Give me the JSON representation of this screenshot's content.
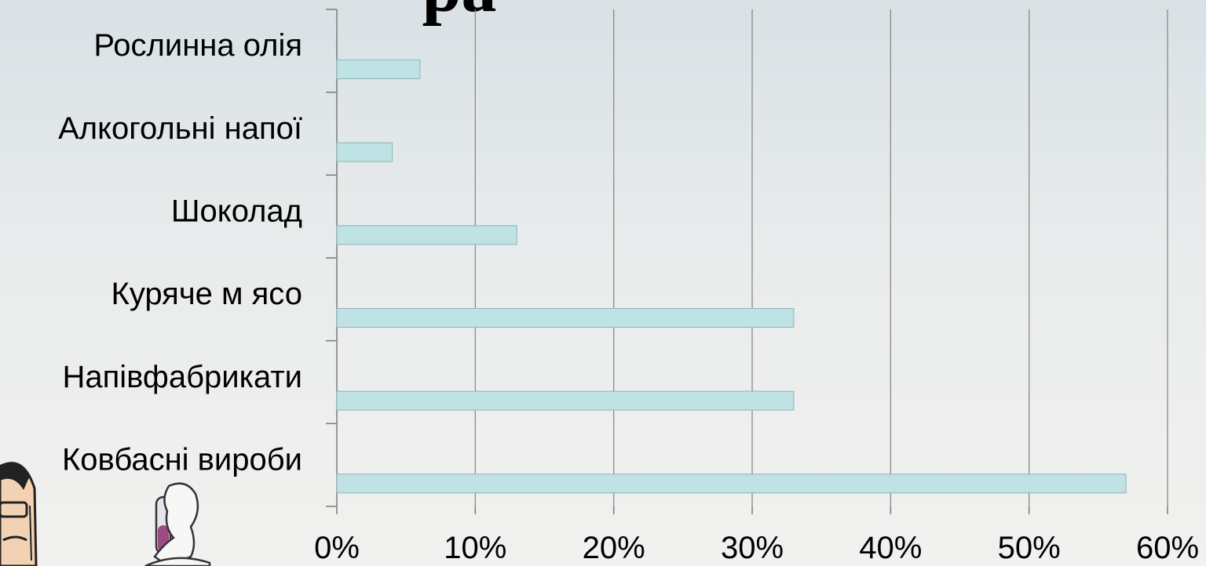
{
  "title_fragment": "ра",
  "chart_data": {
    "type": "bar",
    "orientation": "horizontal",
    "categories": [
      "Рослинна олія",
      "Алкогольні напої",
      "Шоколад",
      "Куряче м ясо",
      "Напівфабрикати",
      "Ковбасні вироби"
    ],
    "values": [
      6,
      4,
      13,
      33,
      33,
      57
    ],
    "unit": "%",
    "xlim": [
      0,
      60
    ],
    "x_ticks": [
      "0%",
      "10%",
      "20%",
      "30%",
      "40%",
      "50%",
      "60%"
    ],
    "grid": true,
    "legend": "none",
    "bar_color": "#bfe2e4",
    "bar_stroke": "#8fb3b8"
  },
  "illustrations": {
    "left": "scientist-face-icon",
    "right": "test-tube-hand-icon"
  }
}
